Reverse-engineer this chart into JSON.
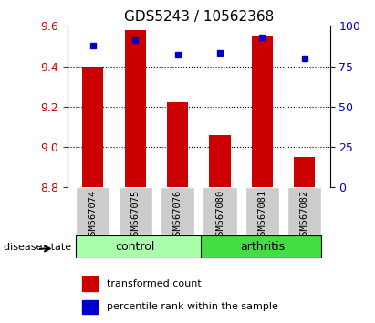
{
  "title": "GDS5243 / 10562368",
  "samples": [
    "GSM567074",
    "GSM567075",
    "GSM567076",
    "GSM567080",
    "GSM567081",
    "GSM567082"
  ],
  "red_values": [
    9.4,
    9.58,
    9.22,
    9.06,
    9.55,
    8.95
  ],
  "blue_values": [
    88,
    91,
    82,
    83,
    93,
    80
  ],
  "y_min": 8.8,
  "y_max": 9.6,
  "y_ticks": [
    8.8,
    9.0,
    9.2,
    9.4,
    9.6
  ],
  "y2_ticks": [
    0,
    25,
    50,
    75,
    100
  ],
  "bar_color": "#cc0000",
  "dot_color": "#0000cc",
  "control_color": "#aaffaa",
  "arthritis_color": "#44dd44",
  "label_bg_color": "#cccccc",
  "groups": {
    "control": [
      0,
      1,
      2
    ],
    "arthritis": [
      3,
      4,
      5
    ]
  },
  "title_fontsize": 11,
  "tick_fontsize": 9,
  "label_fontsize": 9
}
